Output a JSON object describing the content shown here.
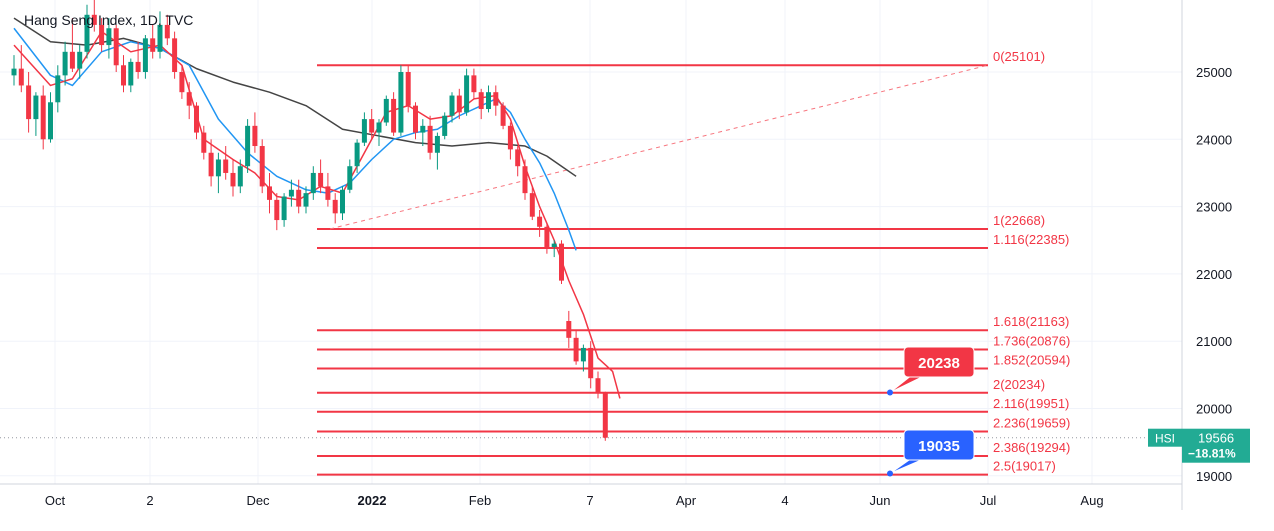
{
  "header": {
    "title": "Hang Seng Index, 1D, TVC"
  },
  "chart_data": {
    "type": "candlestick",
    "symbol": "HSI",
    "last_price": "19566",
    "change_pct": "−18.81%",
    "y_axis": {
      "ticks": [
        25000,
        24000,
        23000,
        22000,
        21000,
        20000,
        19000
      ],
      "range": [
        18800,
        26000
      ]
    },
    "x_axis": {
      "ticks": [
        "Oct",
        "2",
        "Dec",
        "2022",
        "Feb",
        "7",
        "Apr",
        "4",
        "Jun",
        "Jul",
        "Aug"
      ]
    },
    "fib_levels": [
      {
        "label": "0(25101)",
        "value": 25101
      },
      {
        "label": "1(22668)",
        "value": 22668
      },
      {
        "label": "1.116(22385)",
        "value": 22385
      },
      {
        "label": "1.618(21163)",
        "value": 21163
      },
      {
        "label": "1.736(20876)",
        "value": 20876
      },
      {
        "label": "1.852(20594)",
        "value": 20594
      },
      {
        "label": "2(20234)",
        "value": 20234
      },
      {
        "label": "2.116(19951)",
        "value": 19951
      },
      {
        "label": "2.236(19659)",
        "value": 19659
      },
      {
        "label": "2.386(19294)",
        "value": 19294
      },
      {
        "label": "2.5(19017)",
        "value": 19017
      }
    ],
    "callouts": [
      {
        "label": "20238",
        "value": 20238,
        "color": "#f23645"
      },
      {
        "label": "19035",
        "value": 19035,
        "color": "#2962ff"
      }
    ],
    "colors": {
      "up": "#089981",
      "down": "#f23645",
      "fib": "#f23645",
      "ma_fast": "#f23645",
      "ma_mid": "#2196f3",
      "ma_slow": "#444444"
    },
    "candles": [
      [
        24950,
        25250,
        24800,
        25050
      ],
      [
        25050,
        25400,
        24700,
        24800
      ],
      [
        24800,
        25000,
        24100,
        24300
      ],
      [
        24300,
        24700,
        24050,
        24650
      ],
      [
        24650,
        24800,
        23850,
        24000
      ],
      [
        24000,
        24700,
        23950,
        24550
      ],
      [
        24550,
        25100,
        24400,
        24950
      ],
      [
        24950,
        25450,
        24800,
        25300
      ],
      [
        25300,
        25800,
        25000,
        25050
      ],
      [
        25050,
        25400,
        24900,
        25300
      ],
      [
        25300,
        26000,
        25200,
        25850
      ],
      [
        25850,
        26100,
        25600,
        25700
      ],
      [
        25700,
        25800,
        25300,
        25400
      ],
      [
        25400,
        25800,
        25200,
        25650
      ],
      [
        25650,
        25700,
        25000,
        25100
      ],
      [
        25100,
        25250,
        24700,
        24800
      ],
      [
        24800,
        25200,
        24700,
        25150
      ],
      [
        25150,
        25450,
        24900,
        25000
      ],
      [
        25000,
        25550,
        24900,
        25500
      ],
      [
        25500,
        25700,
        25200,
        25300
      ],
      [
        25300,
        25900,
        25200,
        25700
      ],
      [
        25700,
        25850,
        25400,
        25500
      ],
      [
        25500,
        25600,
        24900,
        25000
      ],
      [
        25000,
        25100,
        24600,
        24700
      ],
      [
        24700,
        24850,
        24300,
        24500
      ],
      [
        24500,
        24550,
        24000,
        24100
      ],
      [
        24100,
        24200,
        23700,
        23800
      ],
      [
        23800,
        24000,
        23300,
        23450
      ],
      [
        23450,
        23800,
        23200,
        23700
      ],
      [
        23700,
        23900,
        23400,
        23500
      ],
      [
        23500,
        23700,
        23150,
        23300
      ],
      [
        23300,
        23700,
        23200,
        23600
      ],
      [
        23600,
        24300,
        23500,
        24200
      ],
      [
        24200,
        24400,
        23800,
        23900
      ],
      [
        23900,
        24000,
        23200,
        23300
      ],
      [
        23300,
        23500,
        22900,
        23100
      ],
      [
        23100,
        23200,
        22650,
        22800
      ],
      [
        22800,
        23200,
        22700,
        23150
      ],
      [
        23150,
        23400,
        23000,
        23250
      ],
      [
        23250,
        23400,
        22900,
        23000
      ],
      [
        23000,
        23300,
        22900,
        23200
      ],
      [
        23200,
        23600,
        23100,
        23500
      ],
      [
        23500,
        23700,
        23200,
        23300
      ],
      [
        23300,
        23500,
        23000,
        23100
      ],
      [
        23100,
        23200,
        22750,
        22900
      ],
      [
        22900,
        23300,
        22800,
        23250
      ],
      [
        23250,
        23700,
        23200,
        23600
      ],
      [
        23600,
        24000,
        23500,
        23950
      ],
      [
        23950,
        24400,
        23900,
        24300
      ],
      [
        24300,
        24450,
        24000,
        24100
      ],
      [
        24100,
        24300,
        23900,
        24250
      ],
      [
        24250,
        24650,
        24200,
        24600
      ],
      [
        24600,
        24700,
        24050,
        24100
      ],
      [
        24100,
        25100,
        24050,
        25000
      ],
      [
        25000,
        25100,
        24400,
        24500
      ],
      [
        24500,
        24550,
        24000,
        24100
      ],
      [
        24100,
        24300,
        23900,
        24200
      ],
      [
        24200,
        24350,
        23700,
        23800
      ],
      [
        23800,
        24100,
        23550,
        24050
      ],
      [
        24050,
        24400,
        24000,
        24350
      ],
      [
        24350,
        24700,
        24250,
        24650
      ],
      [
        24650,
        24750,
        24300,
        24400
      ],
      [
        24400,
        25050,
        24350,
        24950
      ],
      [
        24950,
        25050,
        24600,
        24700
      ],
      [
        24700,
        24750,
        24300,
        24450
      ],
      [
        24450,
        24800,
        24400,
        24700
      ],
      [
        24700,
        24800,
        24350,
        24500
      ],
      [
        24500,
        24550,
        24150,
        24200
      ],
      [
        24200,
        24250,
        23700,
        23850
      ],
      [
        23850,
        23900,
        23450,
        23600
      ],
      [
        23600,
        23700,
        23100,
        23200
      ],
      [
        23200,
        23300,
        22800,
        22850
      ],
      [
        22850,
        22950,
        22550,
        22700
      ],
      [
        22700,
        22750,
        22300,
        22400
      ],
      [
        22400,
        22500,
        22250,
        22450
      ],
      [
        22450,
        22500,
        21850,
        21900
      ],
      [
        21300,
        21450,
        20900,
        21050
      ],
      [
        21050,
        21150,
        20650,
        20700
      ],
      [
        20700,
        20950,
        20550,
        20900
      ],
      [
        20900,
        21000,
        20300,
        20450
      ],
      [
        20450,
        20550,
        20150,
        20234
      ],
      [
        20234,
        20250,
        19520,
        19566
      ]
    ],
    "ma_fast": [
      [
        0,
        25400
      ],
      [
        5,
        24800
      ],
      [
        8,
        24900
      ],
      [
        12,
        25600
      ],
      [
        16,
        25300
      ],
      [
        20,
        25400
      ],
      [
        23,
        25100
      ],
      [
        26,
        24000
      ],
      [
        30,
        23700
      ],
      [
        33,
        23500
      ],
      [
        36,
        23150
      ],
      [
        39,
        23100
      ],
      [
        42,
        23300
      ],
      [
        45,
        23200
      ],
      [
        48,
        23800
      ],
      [
        51,
        24400
      ],
      [
        54,
        24500
      ],
      [
        57,
        24300
      ],
      [
        60,
        24350
      ],
      [
        63,
        24600
      ],
      [
        66,
        24650
      ],
      [
        68,
        24300
      ],
      [
        70,
        23600
      ],
      [
        72,
        23000
      ],
      [
        74,
        22500
      ],
      [
        76,
        21900
      ],
      [
        78,
        21400
      ],
      [
        80,
        20750
      ],
      [
        82,
        20550
      ],
      [
        83,
        20150
      ]
    ],
    "ma_mid": [
      [
        0,
        25650
      ],
      [
        5,
        24950
      ],
      [
        8,
        24800
      ],
      [
        12,
        25300
      ],
      [
        16,
        25450
      ],
      [
        20,
        25350
      ],
      [
        24,
        25100
      ],
      [
        28,
        24300
      ],
      [
        32,
        23800
      ],
      [
        36,
        23450
      ],
      [
        40,
        23250
      ],
      [
        43,
        23200
      ],
      [
        46,
        23350
      ],
      [
        49,
        23700
      ],
      [
        52,
        24000
      ],
      [
        55,
        24100
      ],
      [
        58,
        24150
      ],
      [
        61,
        24350
      ],
      [
        64,
        24500
      ],
      [
        66,
        24600
      ],
      [
        68,
        24400
      ],
      [
        70,
        24000
      ],
      [
        72,
        23650
      ],
      [
        74,
        23200
      ],
      [
        76,
        22650
      ],
      [
        77,
        22350
      ]
    ],
    "ma_slow": [
      [
        0,
        25800
      ],
      [
        5,
        25450
      ],
      [
        10,
        25400
      ],
      [
        15,
        25500
      ],
      [
        20,
        25350
      ],
      [
        25,
        25050
      ],
      [
        30,
        24850
      ],
      [
        35,
        24700
      ],
      [
        40,
        24500
      ],
      [
        45,
        24150
      ],
      [
        50,
        24050
      ],
      [
        55,
        23950
      ],
      [
        60,
        23900
      ],
      [
        65,
        23950
      ],
      [
        70,
        23900
      ],
      [
        73,
        23750
      ],
      [
        75,
        23600
      ],
      [
        77,
        23450
      ]
    ]
  }
}
